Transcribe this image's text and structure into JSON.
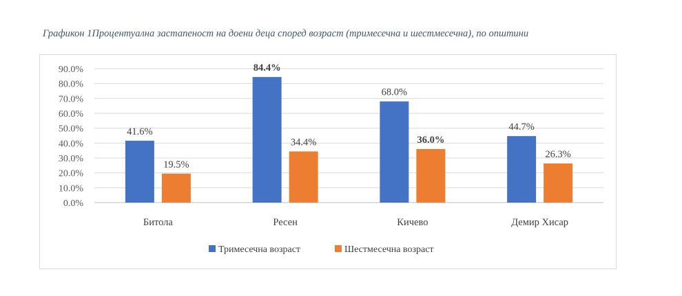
{
  "caption": "Графикон 1Процентуална застапеност на доени деца според возраст (тримесечна и шестмесечна), по општини",
  "chart_data": {
    "type": "bar",
    "title": "",
    "categories": [
      "Битола",
      "Ресен",
      "Кичево",
      "Демир Хисар"
    ],
    "series": [
      {
        "name": "Тримесечна возраст",
        "color": "#4472c4",
        "values": [
          41.6,
          84.4,
          68.0,
          44.7
        ],
        "labels": [
          "41.6%",
          "84.4%",
          "68.0%",
          "44.7%"
        ],
        "bold": [
          false,
          true,
          false,
          false
        ]
      },
      {
        "name": "Шестмесечна возраст",
        "color": "#ed7d31",
        "values": [
          19.5,
          34.4,
          36.0,
          26.3
        ],
        "labels": [
          "19.5%",
          "34.4%",
          "36.0%",
          "26.3%"
        ],
        "bold": [
          false,
          false,
          true,
          false
        ]
      }
    ],
    "ylim": [
      0,
      90
    ],
    "yticks": [
      "0.0%",
      "10.0%",
      "20.0%",
      "30.0%",
      "40.0%",
      "50.0%",
      "60.0%",
      "70.0%",
      "80.0%",
      "90.0%"
    ],
    "xlabel": "",
    "ylabel": "",
    "grid": true,
    "legend_position": "bottom"
  }
}
